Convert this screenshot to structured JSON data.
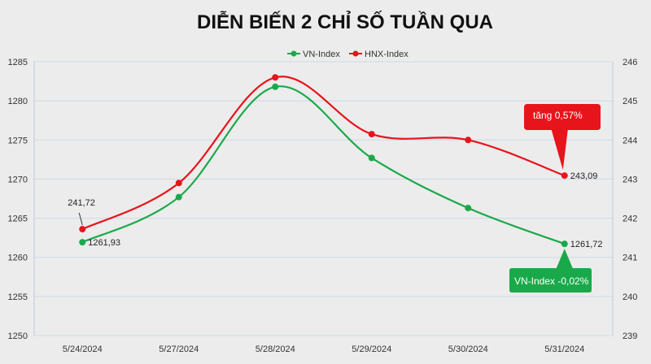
{
  "chart_data": {
    "type": "line",
    "title": "DIỄN BIẾN 2 CHỈ SỐ TUẦN QUA",
    "categories": [
      "5/24/2024",
      "5/27/2024",
      "5/28/2024",
      "5/29/2024",
      "5/30/2024",
      "5/31/2024"
    ],
    "series": [
      {
        "name": "VN-Index",
        "axis": "left",
        "color": "#1aa94a",
        "values": [
          1261.93,
          1267.7,
          1281.8,
          1272.7,
          1266.3,
          1261.72
        ]
      },
      {
        "name": "HNX-Index",
        "axis": "right",
        "color": "#e8141b",
        "values": [
          241.72,
          242.9,
          245.6,
          244.15,
          244.0,
          243.09
        ]
      }
    ],
    "y_left": {
      "min": 1250,
      "max": 1285,
      "ticks": [
        "1250",
        "1255",
        "1260",
        "1265",
        "1270",
        "1275",
        "1280",
        "1285"
      ]
    },
    "y_right": {
      "min": 239,
      "max": 246,
      "ticks": [
        "239",
        "240",
        "241",
        "242",
        "243",
        "244",
        "245",
        "246"
      ]
    },
    "grid": true,
    "legend_position": "top",
    "data_labels": [
      {
        "series": 0,
        "index": 0,
        "text": "1261,93"
      },
      {
        "series": 0,
        "index": 5,
        "text": "1261,72"
      },
      {
        "series": 1,
        "index": 0,
        "text": "241,72"
      },
      {
        "series": 1,
        "index": 5,
        "text": "243,09"
      }
    ],
    "callouts": [
      {
        "series": 1,
        "index": 5,
        "text": "tăng 0,57%",
        "color": "#e8141b"
      },
      {
        "series": 0,
        "index": 5,
        "text": "VN-Index -0,02%",
        "color": "#1aa94a"
      }
    ]
  }
}
